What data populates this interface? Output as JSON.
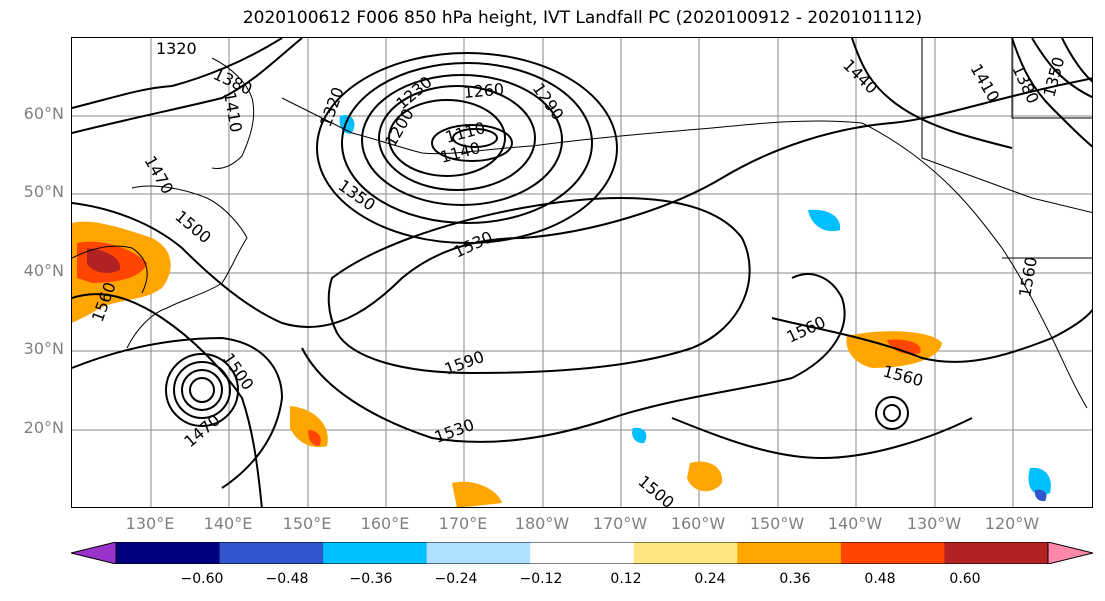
{
  "title": "2020100612 F006 850 hPa height, IVT Landfall PC (2020100912 - 2020101112)",
  "lat_labels": [
    "60°N",
    "50°N",
    "40°N",
    "30°N",
    "20°N"
  ],
  "lon_labels": [
    "130°E",
    "140°E",
    "150°E",
    "160°E",
    "170°E",
    "180°W",
    "170°W",
    "160°W",
    "150°W",
    "140°W",
    "130°W",
    "120°W"
  ],
  "contour_labels": [
    "1320",
    "1380",
    "1410",
    "1470",
    "1500",
    "1530",
    "1560",
    "1590",
    "1500",
    "1470",
    "1530",
    "1560",
    "1560",
    "1440",
    "1410",
    "1380",
    "1350",
    "1560",
    "1260",
    "1230",
    "1290",
    "1320",
    "1350",
    "1110",
    "1140",
    "1200",
    "1500"
  ],
  "colorbar": {
    "ticks": [
      "−0.60",
      "−0.48",
      "−0.36",
      "−0.24",
      "−0.12",
      "0.12",
      "0.24",
      "0.36",
      "0.48",
      "0.60"
    ],
    "colors": [
      "#9933cc",
      "#000080",
      "#3355cc",
      "#00bfff",
      "#b0e0ff",
      "#ffffff",
      "#ffe680",
      "#ffa500",
      "#ff4500",
      "#b22222",
      "#ff88aa"
    ]
  }
}
